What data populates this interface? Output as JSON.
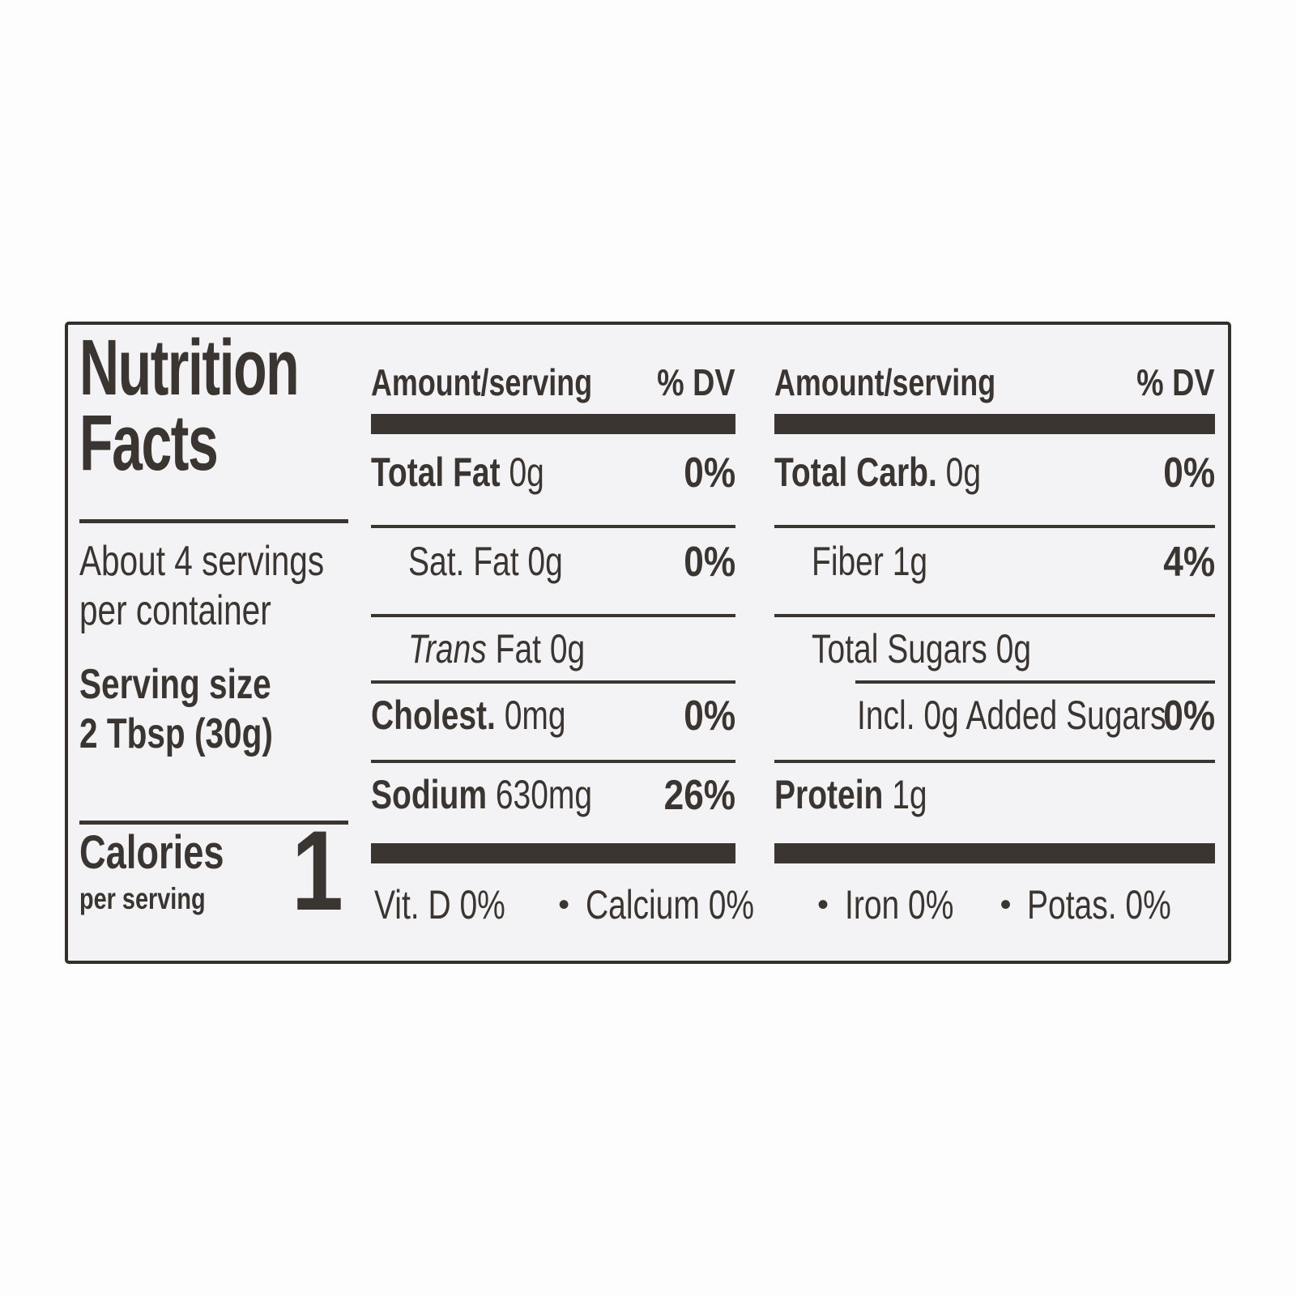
{
  "label": {
    "title": {
      "line1": "Nutrition",
      "line2": "Facts"
    },
    "servings": {
      "line1": "About 4 servings",
      "line2": "per container"
    },
    "serving_size": {
      "label": "Serving size",
      "value": "2 Tbsp (30g)"
    },
    "calories": {
      "label": "Calories",
      "sublabel": "per serving",
      "value": "1"
    },
    "column_header": {
      "amount": "Amount/serving",
      "dv": "% DV"
    },
    "middle": {
      "rows": [
        {
          "name": "Total Fat",
          "value": "0g",
          "dv": "0%"
        },
        {
          "name": "Sat. Fat",
          "value": "0g",
          "dv": "0%"
        },
        {
          "name_italic": "Trans",
          "name": "Fat",
          "value": "0g",
          "dv": ""
        },
        {
          "name": "Cholest.",
          "value": "0mg",
          "dv": "0%"
        },
        {
          "name": "Sodium",
          "value": "630mg",
          "dv": "26%"
        }
      ]
    },
    "right": {
      "rows": [
        {
          "name": "Total Carb.",
          "value": "0g",
          "dv": "0%"
        },
        {
          "name": "Fiber",
          "value": "1g",
          "dv": "4%"
        },
        {
          "name": "Total Sugars",
          "value": "0g",
          "dv": ""
        },
        {
          "name": "Incl. 0g Added Sugars",
          "value": "",
          "dv": "0%"
        },
        {
          "name": "Protein",
          "value": "1g",
          "dv": ""
        }
      ]
    },
    "footnote": {
      "items": [
        "Vit. D 0%",
        "Calcium 0%",
        "Iron 0%",
        "Potas. 0%"
      ],
      "separator": "•"
    },
    "colors": {
      "ink": "#3a3531",
      "background": "#f3f2f4",
      "border": "#33302c"
    }
  }
}
